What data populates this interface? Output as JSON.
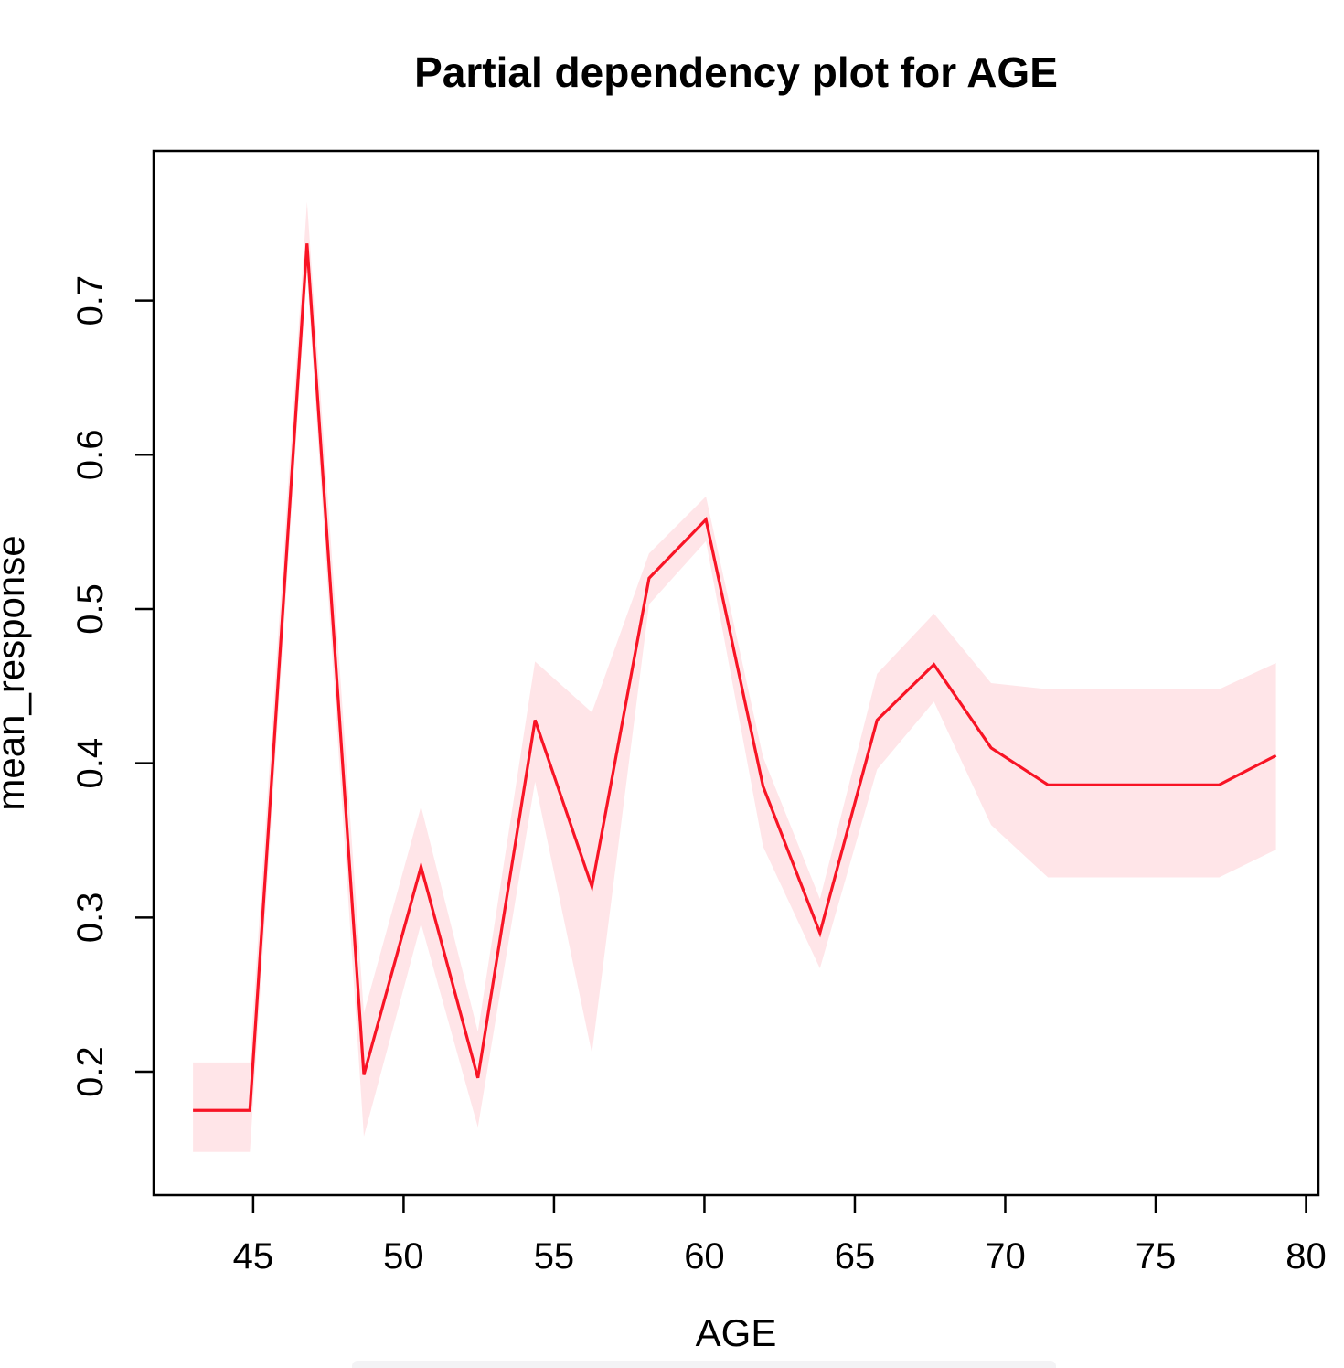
{
  "chart_data": {
    "type": "line",
    "title": "Partial dependency plot for AGE",
    "xlabel": "AGE",
    "ylabel": "mean_response",
    "x": [
      43.0,
      44.89,
      46.79,
      48.68,
      50.58,
      52.47,
      54.37,
      56.26,
      58.16,
      60.05,
      61.95,
      63.84,
      65.74,
      67.63,
      69.53,
      71.42,
      73.32,
      75.21,
      77.11,
      79.0
    ],
    "series": [
      {
        "name": "mean_response",
        "values": [
          0.175,
          0.175,
          0.737,
          0.198,
          0.333,
          0.196,
          0.428,
          0.32,
          0.52,
          0.558,
          0.385,
          0.29,
          0.428,
          0.464,
          0.41,
          0.386,
          0.386,
          0.386,
          0.386,
          0.405
        ]
      },
      {
        "name": "band_lower",
        "values": [
          0.148,
          0.148,
          0.718,
          0.158,
          0.296,
          0.164,
          0.388,
          0.212,
          0.503,
          0.544,
          0.346,
          0.267,
          0.396,
          0.44,
          0.36,
          0.326,
          0.326,
          0.326,
          0.326,
          0.344
        ]
      },
      {
        "name": "band_upper",
        "values": [
          0.206,
          0.206,
          0.764,
          0.238,
          0.372,
          0.226,
          0.466,
          0.433,
          0.536,
          0.573,
          0.404,
          0.312,
          0.458,
          0.497,
          0.452,
          0.448,
          0.448,
          0.448,
          0.448,
          0.465
        ]
      }
    ],
    "x_ticks": [
      45,
      50,
      55,
      60,
      65,
      70,
      75,
      80
    ],
    "x_tick_labels": [
      "45",
      "50",
      "55",
      "60",
      "65",
      "70",
      "75",
      "80"
    ],
    "y_ticks": [
      0.2,
      0.3,
      0.4,
      0.5,
      0.6,
      0.7
    ],
    "y_tick_labels": [
      "0.2",
      "0.3",
      "0.4",
      "0.5",
      "0.6",
      "0.7"
    ],
    "xlim": [
      41.69,
      80.41
    ],
    "ylim": [
      0.12,
      0.797
    ],
    "grid": false,
    "legend": "none",
    "colors": {
      "line": "#f81425",
      "band": "#ffe5e8",
      "axis": "#000000",
      "background": "#ffffff"
    }
  }
}
